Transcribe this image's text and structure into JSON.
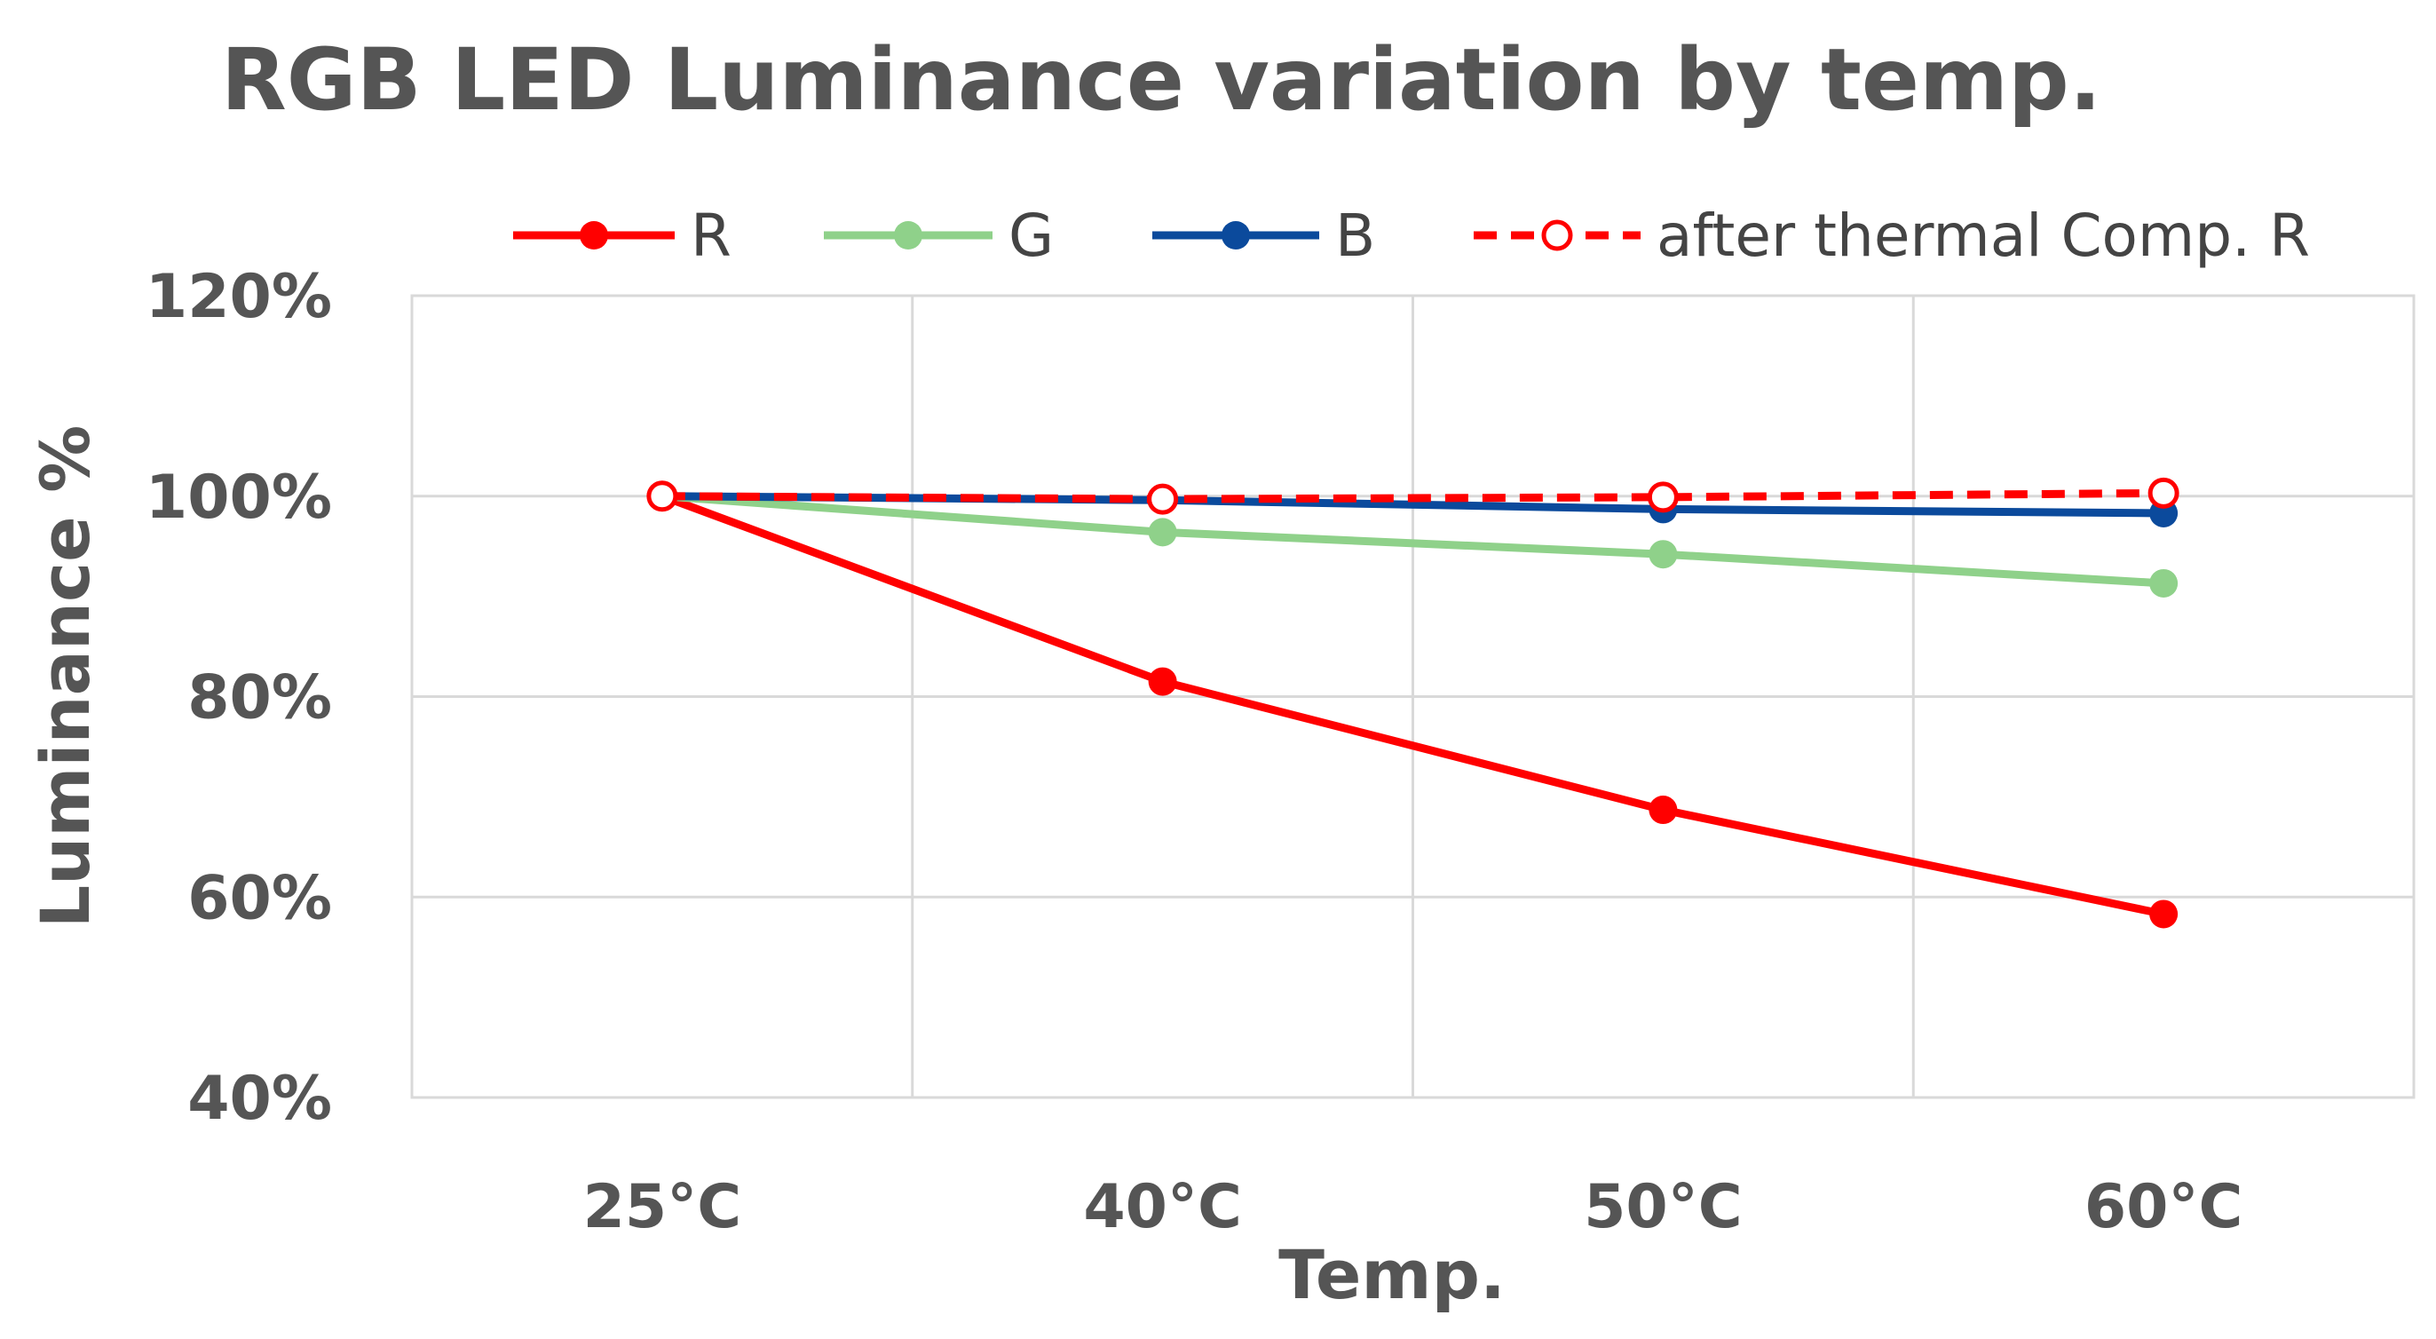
{
  "chart_data": {
    "type": "line",
    "title": "RGB LED Luminance variation by temp.",
    "xlabel": "Temp.",
    "ylabel": "Luminance %",
    "categories": [
      "25°C",
      "40°C",
      "50°C",
      "60°C"
    ],
    "ylim": [
      0.4,
      1.2
    ],
    "yticks": [
      0.4,
      0.6,
      0.8,
      1.0,
      1.2
    ],
    "ytick_labels": [
      "40%",
      "60%",
      "80%",
      "100%",
      "120%"
    ],
    "grid": true,
    "legend_position": "top",
    "series": [
      {
        "name": "R",
        "color": "#ff0000",
        "style": "solid",
        "marker": "filled",
        "values": [
          1.0,
          0.815,
          0.687,
          0.583
        ]
      },
      {
        "name": "G",
        "color": "#8fd18a",
        "style": "solid",
        "marker": "filled",
        "values": [
          1.0,
          0.964,
          0.942,
          0.913
        ]
      },
      {
        "name": "B",
        "color": "#0b4a9c",
        "style": "solid",
        "marker": "filled",
        "values": [
          1.0,
          0.996,
          0.987,
          0.983
        ]
      },
      {
        "name": "after thermal Comp. R",
        "color": "#ff0000",
        "style": "dashed",
        "marker": "hollow",
        "values": [
          1.0,
          0.997,
          0.999,
          1.003
        ]
      }
    ]
  }
}
